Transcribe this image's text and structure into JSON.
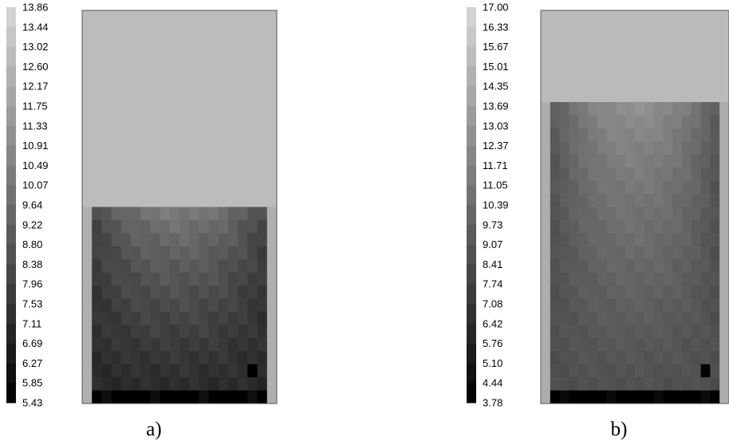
{
  "chart_data": [
    {
      "type": "heatmap",
      "caption": "a)",
      "colorbar": {
        "ticks": [
          "13.86",
          "13.44",
          "13.02",
          "12.60",
          "12.17",
          "11.75",
          "11.33",
          "10.91",
          "10.49",
          "10.07",
          "9.64",
          "9.22",
          "8.80",
          "8.38",
          "7.96",
          "7.53",
          "7.11",
          "6.69",
          "6.27",
          "5.85",
          "5.43"
        ],
        "range": [
          5.43,
          13.86
        ]
      },
      "fill_level": 0.49,
      "liquid_values": {
        "top": 10.2,
        "bottom": 7.0,
        "wall": 7.5,
        "base": 5.43,
        "hot_spot": 5.6
      },
      "gas_value": 12.8
    },
    {
      "type": "heatmap",
      "caption": "b)",
      "colorbar": {
        "ticks": [
          "17.00",
          "16.33",
          "15.67",
          "15.01",
          "14.35",
          "13.69",
          "13.03",
          "12.37",
          "11.71",
          "11.05",
          "10.39",
          "9.73",
          "9.07",
          "8.41",
          "7.74",
          "7.08",
          "6.42",
          "5.76",
          "5.10",
          "4.44",
          "3.78"
        ],
        "range": [
          3.78,
          17.0
        ]
      },
      "fill_level": 0.77,
      "liquid_values": {
        "top": 12.6,
        "bottom": 8.6,
        "wall": 8.0,
        "base": 3.78,
        "hot_spot": 5.5
      },
      "gas_value": 15.2
    }
  ]
}
